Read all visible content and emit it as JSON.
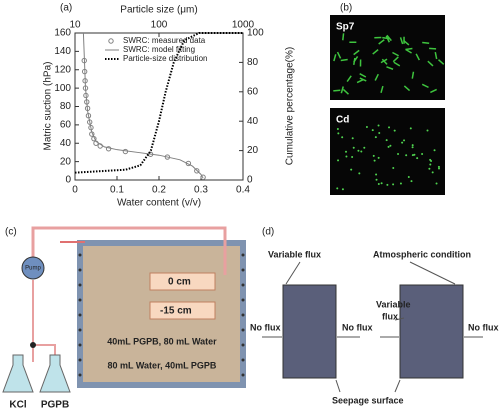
{
  "chart_data": {
    "type": "scatter",
    "panel_label": "(a)",
    "xlabel": "Water content (v/v)",
    "ylabel": "Matric suction (hPa)",
    "x2label": "Particle size (μm)",
    "y2label": "Cumulative percentage(%)",
    "xlim": [
      0,
      0.4
    ],
    "xticks": [
      0,
      0.1,
      0.2,
      0.3,
      0.4
    ],
    "ylim": [
      0,
      160
    ],
    "yticks": [
      0,
      20,
      40,
      60,
      80,
      100,
      120,
      140,
      160
    ],
    "x2lim": [
      10,
      1000
    ],
    "x2ticks": [
      10,
      100,
      1000
    ],
    "x2log": true,
    "y2lim": [
      0,
      100
    ],
    "y2ticks": [
      0,
      20,
      40,
      60,
      80,
      100
    ],
    "legend": "upper right",
    "series": [
      {
        "name": "SWRC: measured data",
        "color": "#808080",
        "marker": "circle",
        "x": [
          0.022,
          0.023,
          0.024,
          0.025,
          0.026,
          0.028,
          0.03,
          0.032,
          0.035,
          0.038,
          0.04,
          0.045,
          0.05,
          0.06,
          0.08,
          0.12,
          0.18,
          0.22,
          0.27,
          0.29,
          0.305
        ],
        "values": [
          130,
          118,
          108,
          100,
          92,
          85,
          78,
          70,
          63,
          57,
          50,
          45,
          40,
          37,
          34,
          31,
          28,
          25,
          18,
          10,
          3
        ]
      },
      {
        "name": "SWRC: model fitting",
        "color": "#808080",
        "marker": "line",
        "x": [
          0.02,
          0.025,
          0.03,
          0.04,
          0.05,
          0.07,
          0.1,
          0.15,
          0.2,
          0.25,
          0.28,
          0.3,
          0.305
        ],
        "values": [
          160,
          100,
          75,
          52,
          42,
          36,
          33,
          30,
          27,
          22,
          15,
          6,
          2
        ]
      },
      {
        "name": "Particle-size distribution",
        "color": "#000000",
        "marker": "dotted",
        "axis": "y2",
        "xaxis": "x2",
        "x": [
          10,
          20,
          40,
          60,
          80,
          100,
          120,
          150,
          200,
          300,
          1000
        ],
        "values": [
          5,
          6,
          7,
          10,
          20,
          40,
          60,
          80,
          95,
          100,
          100
        ]
      }
    ]
  },
  "panel_b": {
    "label": "(b)",
    "images": [
      "Sp7",
      "Cd"
    ]
  },
  "panel_c": {
    "label": "(c)",
    "pump": "Pump",
    "depths": [
      "0 cm",
      "-15 cm"
    ],
    "layers": [
      "40mL PGPB, 80 mL Water",
      "80 mL Water, 40mL PGPB"
    ],
    "flasks": [
      "KCl",
      "PGPB"
    ]
  },
  "panel_d": {
    "label": "(d)",
    "variable_flux": "Variable flux",
    "atmospheric": "Atmospheric condition",
    "variable_flux_inner": [
      "Variable",
      "flux"
    ],
    "no_flux": [
      "No flux",
      "No flux",
      "No flux"
    ],
    "seepage": "Seepage surface"
  }
}
